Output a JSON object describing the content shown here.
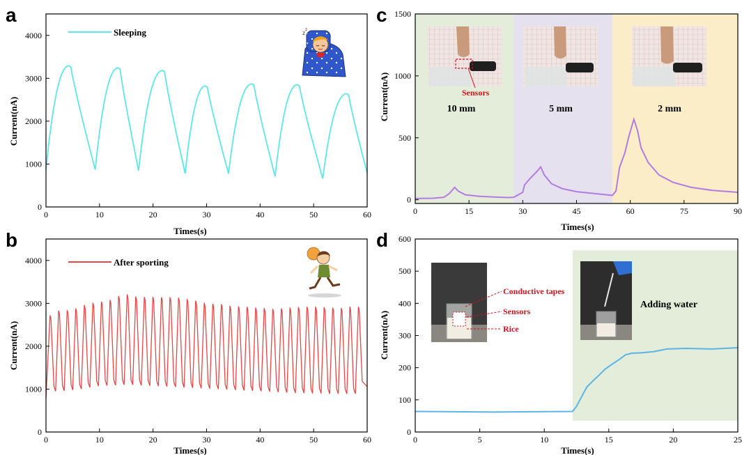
{
  "panels": {
    "a": {
      "label": "a"
    },
    "b": {
      "label": "b"
    },
    "c": {
      "label": "c"
    },
    "d": {
      "label": "d"
    }
  },
  "chart_data": [
    {
      "id": "a",
      "type": "line",
      "xlabel": "Times(s)",
      "ylabel": "Current(nA)",
      "xlim": [
        0,
        60
      ],
      "ylim": [
        0,
        4500
      ],
      "xticks": [
        0,
        10,
        20,
        30,
        40,
        50,
        60
      ],
      "yticks": [
        0,
        1000,
        2000,
        3000,
        4000
      ],
      "series": [
        {
          "name": "Sleeping",
          "color": "#5fe6e6",
          "cycles": [
            {
              "t_min": 0.0,
              "t_peak": 4.3,
              "min": 870,
              "peak": 3290
            },
            {
              "t_min": 9.2,
              "t_peak": 13.5,
              "min": 870,
              "peak": 3240
            },
            {
              "t_min": 17.3,
              "t_peak": 21.8,
              "min": 850,
              "peak": 3180
            },
            {
              "t_min": 26.0,
              "t_peak": 29.8,
              "min": 780,
              "peak": 2820
            },
            {
              "t_min": 34.1,
              "t_peak": 38.5,
              "min": 780,
              "peak": 2870
            },
            {
              "t_min": 42.8,
              "t_peak": 47.0,
              "min": 710,
              "peak": 2850
            },
            {
              "t_min": 51.7,
              "t_peak": 56.2,
              "min": 660,
              "peak": 2640
            }
          ],
          "end": {
            "t": 60.0,
            "value": 790
          }
        }
      ],
      "icon": "sleeping-child-illustration"
    },
    {
      "id": "b",
      "type": "line",
      "xlabel": "Times(s)",
      "ylabel": "Current(nA)",
      "xlim": [
        0,
        60
      ],
      "ylim": [
        0,
        4500
      ],
      "xticks": [
        0,
        10,
        20,
        30,
        40,
        50,
        60
      ],
      "yticks": [
        0,
        1000,
        2000,
        3000,
        4000
      ],
      "series": [
        {
          "name": "After sporting",
          "color": "#e64646",
          "start": {
            "t": 0.0,
            "value": 800
          },
          "period": 1.6,
          "peaks": [
            2720,
            2830,
            2840,
            2880,
            2960,
            3010,
            3040,
            3080,
            3170,
            3210,
            3160,
            3150,
            3150,
            3140,
            3140,
            3130,
            3100,
            3060,
            3010,
            2990,
            2980,
            2940,
            2930,
            2920,
            2900,
            2890,
            2870,
            2880,
            2900,
            2910,
            2920,
            2920,
            2910,
            2900,
            2890,
            2920,
            2920
          ],
          "troughs": [
            950,
            960,
            980,
            1000,
            1040,
            1070,
            1080,
            1090,
            1100,
            1100,
            1090,
            1080,
            1070,
            1060,
            1050,
            1040,
            1030,
            1020,
            1010,
            1000,
            990,
            980,
            970,
            960,
            950,
            940,
            930,
            920,
            910,
            910,
            900,
            900,
            890,
            890,
            890,
            890,
            1060
          ]
        }
      ],
      "icon": "running-child-illustration"
    },
    {
      "id": "c",
      "type": "area",
      "xlabel": "Times(s)",
      "ylabel": "Current(nA)",
      "xlim": [
        0,
        90
      ],
      "ylim": [
        -30,
        1500
      ],
      "xticks": [
        0,
        15,
        30,
        45,
        60,
        75,
        90
      ],
      "yticks": [
        0,
        500,
        1000,
        1500
      ],
      "regions": [
        {
          "from": 0,
          "to": 27.5,
          "color": "#e4edd9",
          "label": "10 mm"
        },
        {
          "from": 27.5,
          "to": 55,
          "color": "#e6e1ef",
          "label": "5 mm"
        },
        {
          "from": 55,
          "to": 90,
          "color": "#fcedc9",
          "label": "2 mm"
        }
      ],
      "series": [
        {
          "name": "",
          "color": "#b27be0",
          "points": [
            [
              0,
              10
            ],
            [
              5,
              12
            ],
            [
              8,
              20
            ],
            [
              9.5,
              50
            ],
            [
              11,
              100
            ],
            [
              12,
              70
            ],
            [
              14,
              40
            ],
            [
              18,
              28
            ],
            [
              22,
              22
            ],
            [
              26,
              18
            ],
            [
              27.5,
              20
            ],
            [
              30,
              60
            ],
            [
              30.5,
              120
            ],
            [
              32,
              170
            ],
            [
              34,
              230
            ],
            [
              35,
              265
            ],
            [
              36,
              200
            ],
            [
              38,
              130
            ],
            [
              41,
              90
            ],
            [
              45,
              65
            ],
            [
              50,
              50
            ],
            [
              55,
              35
            ],
            [
              56,
              70
            ],
            [
              57,
              260
            ],
            [
              58.5,
              380
            ],
            [
              59.5,
              500
            ],
            [
              60.5,
              600
            ],
            [
              61,
              650
            ],
            [
              62,
              560
            ],
            [
              63,
              420
            ],
            [
              65,
              300
            ],
            [
              68,
              200
            ],
            [
              72,
              140
            ],
            [
              77,
              100
            ],
            [
              83,
              75
            ],
            [
              90,
              60
            ]
          ]
        }
      ],
      "annotations": {
        "sensors": "Sensors"
      }
    },
    {
      "id": "d",
      "type": "area",
      "xlabel": "Times(s)",
      "ylabel": "Current(nA)",
      "xlim": [
        0,
        25
      ],
      "ylim": [
        0,
        600
      ],
      "xticks": [
        0,
        5,
        10,
        15,
        20,
        25
      ],
      "yticks": [
        0,
        100,
        200,
        300,
        400,
        500,
        600
      ],
      "regions": [
        {
          "from": 12.2,
          "to": 25,
          "color": "#e4edd9",
          "label": "Adding water"
        }
      ],
      "series": [
        {
          "name": "",
          "color": "#5ab4e6",
          "points": [
            [
              0,
              64
            ],
            [
              3,
              63
            ],
            [
              6,
              62
            ],
            [
              9,
              63
            ],
            [
              12.2,
              64
            ],
            [
              12.5,
              80
            ],
            [
              12.9,
              110
            ],
            [
              13.3,
              140
            ],
            [
              13.8,
              160
            ],
            [
              14.2,
              175
            ],
            [
              14.7,
              195
            ],
            [
              15.3,
              212
            ],
            [
              15.8,
              225
            ],
            [
              16.3,
              240
            ],
            [
              16.8,
              245
            ],
            [
              17.5,
              246
            ],
            [
              18.5,
              250
            ],
            [
              19.5,
              258
            ],
            [
              21,
              260
            ],
            [
              23,
              258
            ],
            [
              25,
              262
            ]
          ]
        }
      ],
      "annotations": {
        "conductive_tapes": "Conductive tapes",
        "sensors": "Sensors",
        "rice": "Rice"
      }
    }
  ]
}
